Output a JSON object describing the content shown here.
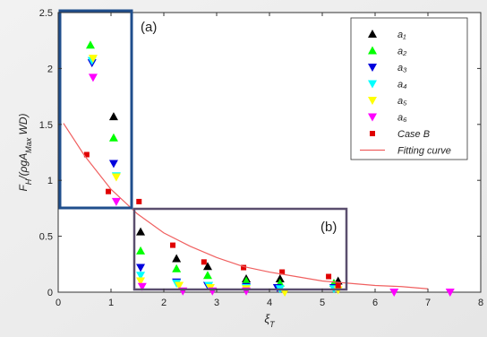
{
  "chart_data": {
    "type": "scatter",
    "x_label": [
      "ξ",
      "T"
    ],
    "y_label": [
      "F",
      "H",
      "/(ρgA",
      "Max",
      " WD)"
    ],
    "annotations": [
      "(a)",
      "(b)"
    ],
    "xlim": [
      0,
      8
    ],
    "ylim": [
      0,
      2.5
    ],
    "xticks": [
      0,
      1,
      2,
      3,
      4,
      5,
      6,
      7,
      8
    ],
    "yticks": [
      0,
      0.5,
      1,
      1.5,
      2,
      2.5
    ],
    "series": [
      {
        "name": "a₁",
        "marker": "triangle-up",
        "color": "#000000",
        "x": [
          1.05,
          1.56,
          2.24,
          2.83,
          3.56,
          4.2,
          5.3
        ],
        "y": [
          1.57,
          0.54,
          0.3,
          0.23,
          0.12,
          0.12,
          0.1
        ]
      },
      {
        "name": "a₂",
        "marker": "triangle-up",
        "color": "#00ff00",
        "x": [
          0.61,
          1.05,
          1.56,
          2.24,
          2.83,
          3.56,
          4.2,
          5.22
        ],
        "y": [
          2.21,
          1.38,
          0.37,
          0.21,
          0.15,
          0.1,
          0.08,
          0.08
        ]
      },
      {
        "name": "a₃",
        "marker": "triangle-down",
        "color": "#0000dd",
        "x": [
          0.64,
          1.05,
          1.56,
          2.24,
          2.83,
          3.56,
          4.15,
          5.22
        ],
        "y": [
          2.05,
          1.15,
          0.22,
          0.09,
          0.06,
          0.05,
          0.04,
          0.04
        ]
      },
      {
        "name": "a₄",
        "marker": "triangle-down",
        "color": "#00ffff",
        "x": [
          0.64,
          1.1,
          1.56,
          2.24,
          2.85,
          3.56,
          4.2,
          5.22
        ],
        "y": [
          2.07,
          1.04,
          0.15,
          0.08,
          0.06,
          0.04,
          0.03,
          0.03
        ]
      },
      {
        "name": "a₅",
        "marker": "triangle-down",
        "color": "#ffff00",
        "x": [
          0.66,
          1.1,
          1.56,
          2.29,
          2.88,
          3.56,
          4.29,
          5.3
        ],
        "y": [
          2.09,
          1.03,
          0.1,
          0.06,
          0.04,
          0.03,
          0.0,
          0.02
        ]
      },
      {
        "name": "a₆",
        "marker": "triangle-down",
        "color": "#ff00ff",
        "x": [
          0.66,
          1.1,
          1.59,
          2.36,
          2.92,
          3.56,
          6.36,
          7.42
        ],
        "y": [
          1.92,
          0.81,
          0.05,
          0.01,
          0.01,
          0.01,
          0.0,
          0.0
        ]
      },
      {
        "name": "Case B",
        "marker": "square",
        "color": "#e00000",
        "x": [
          0.54,
          0.95,
          1.53,
          2.17,
          2.76,
          3.51,
          4.24,
          5.12,
          5.3
        ],
        "y": [
          1.23,
          0.9,
          0.81,
          0.42,
          0.27,
          0.22,
          0.18,
          0.14,
          0.06
        ]
      },
      {
        "name": "Fitting curve",
        "marker": "line",
        "color": "#f06060",
        "x": [
          0.1,
          0.5,
          1,
          1.5,
          2,
          2.5,
          3,
          3.5,
          4,
          4.5,
          5,
          5.5,
          6,
          6.5,
          7
        ],
        "y": [
          1.51,
          1.22,
          0.92,
          0.7,
          0.53,
          0.41,
          0.31,
          0.23,
          0.18,
          0.14,
          0.1,
          0.08,
          0.06,
          0.05,
          0.03
        ]
      }
    ]
  }
}
